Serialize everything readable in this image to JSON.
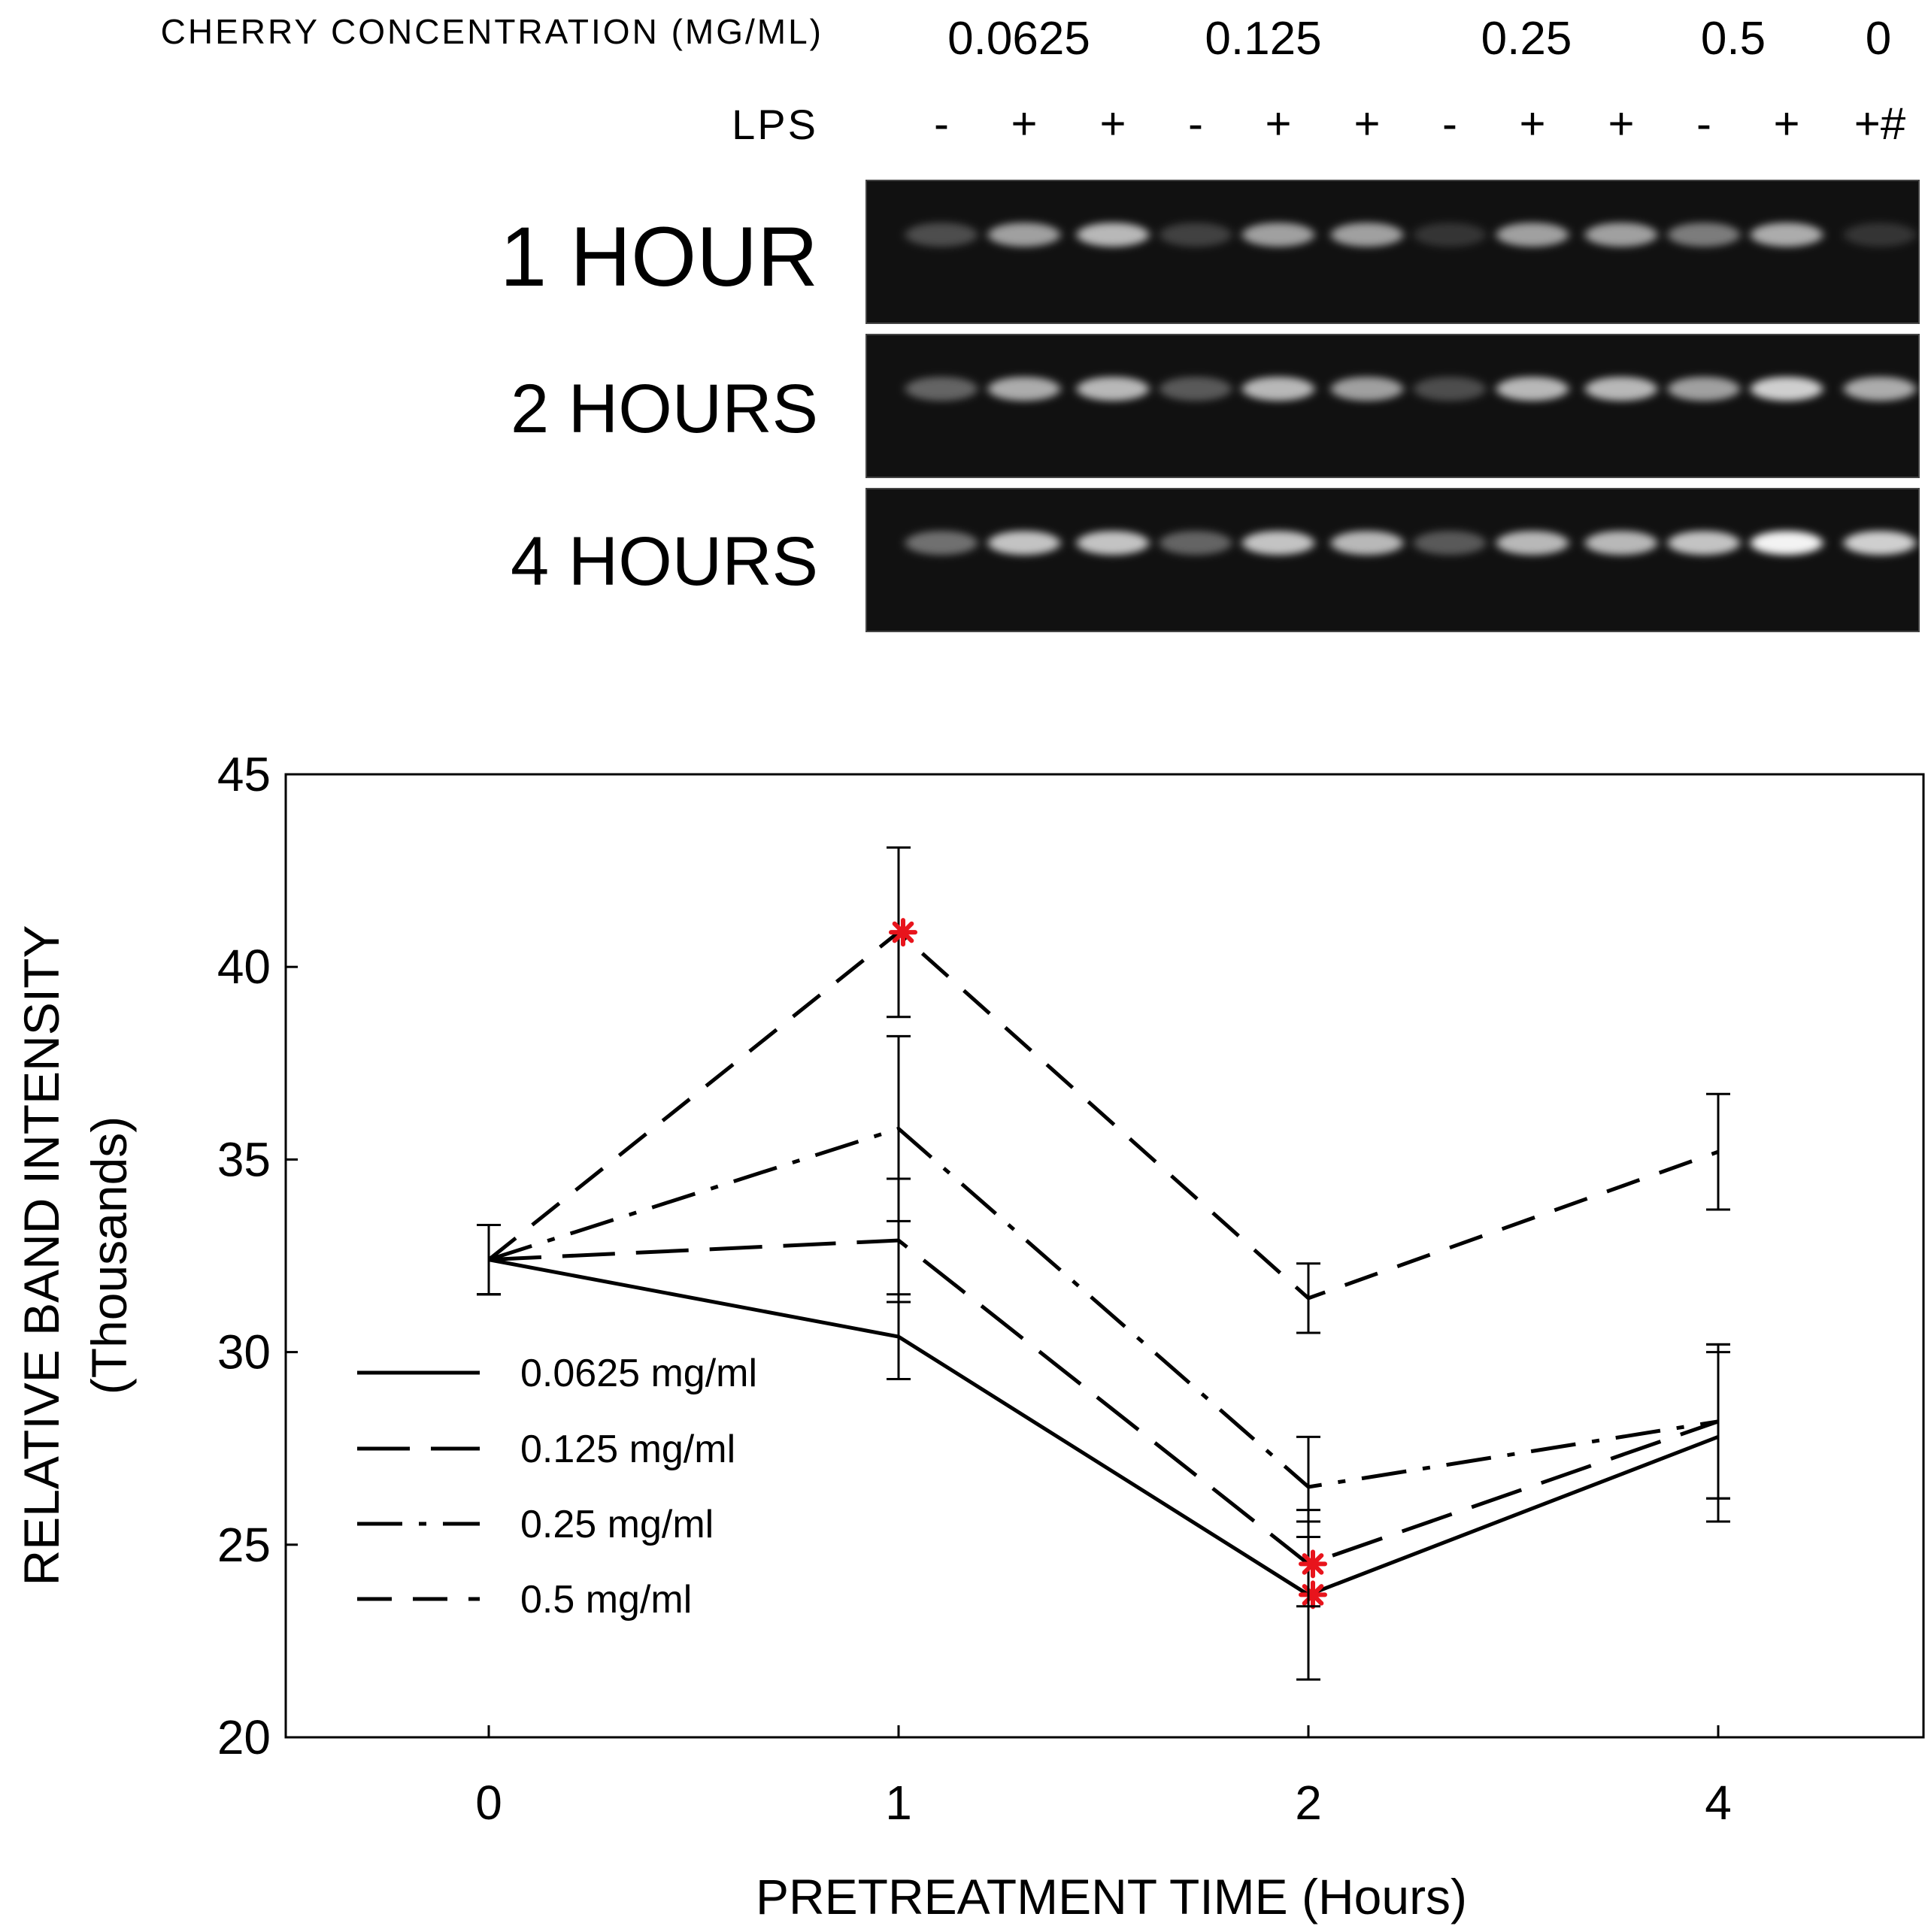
{
  "gel": {
    "concentration_label": "CHERRY CONCENTRATION (MG/ML)",
    "concentrations": [
      "0.0625",
      "0.125",
      "0.25",
      "0.5",
      "0"
    ],
    "lps_label": "LPS",
    "lanes": [
      "-",
      "+",
      "+",
      "-",
      "+",
      "+",
      "-",
      "+",
      "+",
      "-",
      "+",
      "+#"
    ],
    "rows": [
      {
        "label": "1  HOUR",
        "bands": [
          0.25,
          0.6,
          0.7,
          0.2,
          0.6,
          0.6,
          0.15,
          0.6,
          0.6,
          0.45,
          0.65,
          0.15
        ]
      },
      {
        "label": "2  HOURS",
        "bands": [
          0.35,
          0.65,
          0.7,
          0.3,
          0.7,
          0.6,
          0.25,
          0.7,
          0.7,
          0.6,
          0.8,
          0.65
        ]
      },
      {
        "label": "4  HOURS",
        "bands": [
          0.4,
          0.75,
          0.75,
          0.35,
          0.75,
          0.7,
          0.3,
          0.7,
          0.7,
          0.75,
          0.95,
          0.8
        ]
      }
    ],
    "band_color": "#ffffff",
    "background_color": "#111111"
  },
  "chart_data": {
    "type": "line",
    "xlabel": "PRETREATMENT TIME (Hours)",
    "ylabel": "RELATIVE BAND INTENSITY",
    "ylabel_sub": "(Thousands)",
    "categories": [
      "0",
      "1",
      "2",
      "4"
    ],
    "ylim": [
      20,
      45
    ],
    "yticks": [
      20,
      25,
      30,
      35,
      40,
      45
    ],
    "grid": false,
    "legend_position": "bottom-left",
    "series": [
      {
        "name": "0.0625  mg/ml",
        "dash": "solid",
        "values": [
          32.4,
          30.4,
          23.7,
          27.8
        ],
        "errors": [
          0.9,
          1.1,
          2.2,
          2.2
        ],
        "significant": [
          false,
          false,
          true,
          false
        ]
      },
      {
        "name": "0.125  mg/ml",
        "dash": "long-dash",
        "values": [
          32.4,
          32.9,
          24.5,
          28.2
        ],
        "errors": [
          0.9,
          1.6,
          1.1,
          2.0
        ],
        "significant": [
          false,
          false,
          true,
          false
        ]
      },
      {
        "name": "0.25  mg/ml",
        "dash": "dash-dot",
        "values": [
          32.4,
          35.8,
          26.5,
          28.2
        ],
        "errors": [
          0.9,
          2.4,
          1.3,
          2.0
        ],
        "significant": [
          false,
          false,
          false,
          false
        ]
      },
      {
        "name": "0.5  mg/ml",
        "dash": "dash",
        "values": [
          32.4,
          40.9,
          31.4,
          35.2
        ],
        "errors": [
          0.9,
          2.2,
          0.9,
          1.5
        ],
        "significant": [
          false,
          true,
          false,
          false
        ]
      }
    ],
    "marker_color": "#e8141c"
  }
}
